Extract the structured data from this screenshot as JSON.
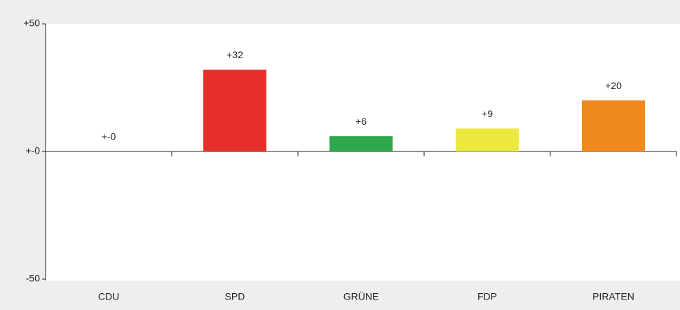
{
  "chart_data": {
    "type": "bar",
    "categories": [
      "CDU",
      "SPD",
      "GRÜNE",
      "FDP",
      "PIRATEN"
    ],
    "values": [
      0,
      32,
      6,
      9,
      20
    ],
    "value_labels": [
      "+-0",
      "+32",
      "+6",
      "+9",
      "+20"
    ],
    "colors": [
      "#000000",
      "#e8302a",
      "#2ea84a",
      "#ede83f",
      "#f0891f"
    ],
    "ylim": [
      -50,
      50
    ],
    "yticks": [
      {
        "value": 50,
        "label": "+50"
      },
      {
        "value": 0,
        "label": "+-0"
      },
      {
        "value": -50,
        "label": "-50"
      }
    ]
  }
}
